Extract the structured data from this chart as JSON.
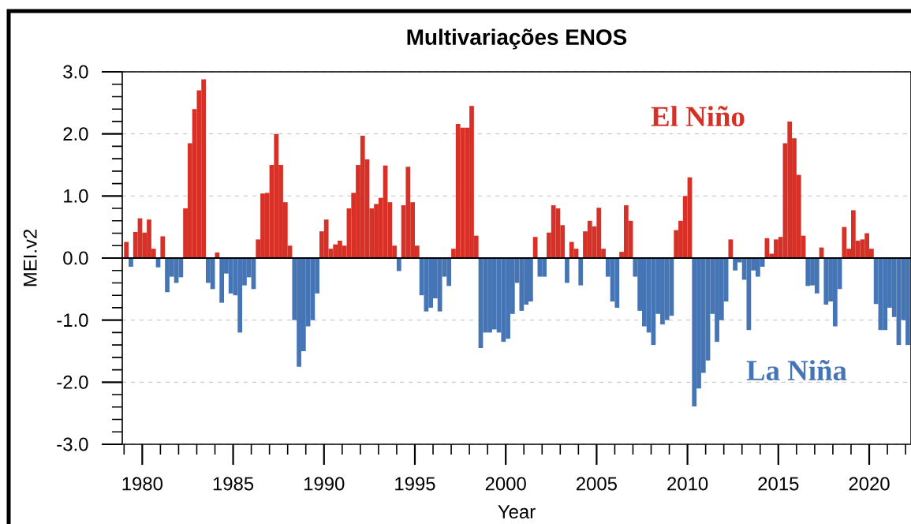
{
  "chart_data": {
    "type": "bar",
    "title": "Multivariações ENOS",
    "xlabel": "Year",
    "ylabel": "MEI.v2",
    "x": [
      1979.125,
      1979.375,
      1979.625,
      1979.875,
      1980.125,
      1980.375,
      1980.625,
      1980.875,
      1981.125,
      1981.375,
      1981.625,
      1981.875,
      1982.125,
      1982.375,
      1982.625,
      1982.875,
      1983.125,
      1983.375,
      1983.625,
      1983.875,
      1984.125,
      1984.375,
      1984.625,
      1984.875,
      1985.125,
      1985.375,
      1985.625,
      1985.875,
      1986.125,
      1986.375,
      1986.625,
      1986.875,
      1987.125,
      1987.375,
      1987.625,
      1987.875,
      1988.125,
      1988.375,
      1988.625,
      1988.875,
      1989.125,
      1989.375,
      1989.625,
      1989.875,
      1990.125,
      1990.375,
      1990.625,
      1990.875,
      1991.125,
      1991.375,
      1991.625,
      1991.875,
      1992.125,
      1992.375,
      1992.625,
      1992.875,
      1993.125,
      1993.375,
      1993.625,
      1993.875,
      1994.125,
      1994.375,
      1994.625,
      1994.875,
      1995.125,
      1995.375,
      1995.625,
      1995.875,
      1996.125,
      1996.375,
      1996.625,
      1996.875,
      1997.125,
      1997.375,
      1997.625,
      1997.875,
      1998.125,
      1998.375,
      1998.625,
      1998.875,
      1999.125,
      1999.375,
      1999.625,
      1999.875,
      2000.125,
      2000.375,
      2000.625,
      2000.875,
      2001.125,
      2001.375,
      2001.625,
      2001.875,
      2002.125,
      2002.375,
      2002.625,
      2002.875,
      2003.125,
      2003.375,
      2003.625,
      2003.875,
      2004.125,
      2004.375,
      2004.625,
      2004.875,
      2005.125,
      2005.375,
      2005.625,
      2005.875,
      2006.125,
      2006.375,
      2006.625,
      2006.875,
      2007.125,
      2007.375,
      2007.625,
      2007.875,
      2008.125,
      2008.375,
      2008.625,
      2008.875,
      2009.125,
      2009.375,
      2009.625,
      2009.875,
      2010.125,
      2010.375,
      2010.625,
      2010.875,
      2011.125,
      2011.375,
      2011.625,
      2011.875,
      2012.125,
      2012.375,
      2012.625,
      2012.875,
      2013.125,
      2013.375,
      2013.625,
      2013.875,
      2014.125,
      2014.375,
      2014.625,
      2014.875,
      2015.125,
      2015.375,
      2015.625,
      2015.875,
      2016.125,
      2016.375,
      2016.625,
      2016.875,
      2017.125,
      2017.375,
      2017.625,
      2017.875,
      2018.125,
      2018.375,
      2018.625,
      2018.875,
      2019.125,
      2019.375,
      2019.625,
      2019.875,
      2020.125,
      2020.375,
      2020.625,
      2020.875,
      2021.125,
      2021.375,
      2021.625,
      2021.875,
      2022.125
    ],
    "series": [
      {
        "name": "El Niño",
        "color": "#d63027",
        "values": [
          0.26,
          null,
          0.42,
          0.64,
          0.41,
          0.62,
          0.15,
          null,
          0.35,
          null,
          null,
          null,
          null,
          0.8,
          1.85,
          2.4,
          2.7,
          2.88,
          null,
          null,
          0.09,
          null,
          null,
          null,
          null,
          null,
          null,
          null,
          null,
          0.3,
          1.04,
          1.05,
          1.5,
          2.0,
          1.5,
          0.9,
          0.2,
          null,
          null,
          null,
          null,
          null,
          null,
          0.43,
          0.62,
          0.15,
          0.22,
          0.28,
          0.2,
          0.8,
          1.05,
          1.5,
          1.97,
          1.59,
          0.8,
          0.87,
          0.97,
          1.49,
          0.9,
          0.2,
          null,
          0.85,
          1.47,
          0.9,
          0.2,
          null,
          null,
          null,
          null,
          null,
          null,
          null,
          0.15,
          2.16,
          2.1,
          2.1,
          2.45,
          0.36,
          null,
          null,
          null,
          null,
          null,
          null,
          null,
          null,
          null,
          null,
          null,
          null,
          0.34,
          null,
          null,
          0.41,
          0.85,
          0.8,
          0.53,
          null,
          0.26,
          0.15,
          null,
          0.43,
          0.6,
          0.51,
          0.81,
          0.15,
          null,
          null,
          null,
          0.1,
          0.85,
          0.6,
          null,
          null,
          null,
          null,
          null,
          null,
          null,
          null,
          null,
          0.45,
          0.6,
          1.0,
          1.3,
          null,
          null,
          null,
          null,
          null,
          null,
          null,
          null,
          0.3,
          null,
          null,
          null,
          null,
          null,
          null,
          null,
          0.32,
          0.07,
          0.3,
          0.34,
          1.85,
          2.2,
          1.93,
          1.34,
          0.36,
          null,
          null,
          null,
          0.17,
          null,
          null,
          null,
          null,
          0.5,
          0.15,
          0.77,
          0.28,
          0.3,
          0.4,
          0.15,
          null,
          null,
          null,
          null,
          null,
          null,
          null,
          null
        ]
      },
      {
        "name": "La Niña",
        "color": "#4575b4",
        "values": [
          null,
          -0.14,
          null,
          null,
          null,
          null,
          null,
          -0.15,
          null,
          -0.55,
          -0.3,
          -0.4,
          -0.31,
          null,
          null,
          null,
          null,
          null,
          -0.4,
          -0.5,
          null,
          -0.72,
          -0.25,
          -0.57,
          -0.6,
          -1.2,
          -0.44,
          -0.31,
          -0.5,
          null,
          null,
          null,
          null,
          null,
          null,
          null,
          null,
          -1.0,
          -1.75,
          -1.5,
          -1.1,
          -1.0,
          -0.57,
          null,
          null,
          null,
          null,
          null,
          null,
          null,
          null,
          null,
          null,
          null,
          null,
          null,
          null,
          null,
          null,
          null,
          -0.21,
          null,
          null,
          null,
          null,
          -0.6,
          -0.86,
          -0.8,
          -0.65,
          -0.86,
          -0.3,
          -0.45,
          null,
          null,
          null,
          null,
          null,
          null,
          -1.45,
          -1.2,
          -1.2,
          -1.15,
          -1.2,
          -1.35,
          -1.3,
          -0.9,
          -0.4,
          -0.85,
          -0.75,
          -0.7,
          null,
          -0.3,
          -0.3,
          null,
          null,
          null,
          null,
          -0.4,
          null,
          null,
          -0.44,
          null,
          null,
          null,
          null,
          null,
          -0.3,
          -0.7,
          -0.8,
          null,
          null,
          null,
          -0.3,
          -0.85,
          -1.1,
          -1.2,
          -1.4,
          -0.9,
          -1.07,
          -1.0,
          -0.93,
          null,
          null,
          null,
          null,
          -2.39,
          -2.1,
          -1.85,
          -1.65,
          -0.9,
          -1.35,
          -1.0,
          -0.7,
          null,
          -0.2,
          -0.07,
          -0.35,
          -1.16,
          -0.2,
          -0.3,
          -0.14,
          null,
          null,
          null,
          null,
          null,
          null,
          null,
          null,
          null,
          -0.45,
          -0.44,
          -0.57,
          null,
          -0.75,
          -0.7,
          -1.1,
          -0.5,
          null,
          null,
          null,
          null,
          null,
          null,
          null,
          -0.74,
          -1.16,
          -1.16,
          -0.8,
          -0.95,
          -1.4,
          -1.0,
          -1.4
        ]
      }
    ],
    "xlim": [
      1978.9,
      2022.3
    ],
    "ylim": [
      -3,
      3
    ],
    "xticks": [
      {
        "value": 1979,
        "label": null
      },
      1980,
      {
        "value": 1981,
        "label": null
      },
      {
        "value": 1982,
        "label": null
      },
      {
        "value": 1983,
        "label": null
      },
      {
        "value": 1984,
        "label": null
      },
      1985,
      {
        "value": 1986,
        "label": null
      },
      {
        "value": 1987,
        "label": null
      },
      {
        "value": 1988,
        "label": null
      },
      {
        "value": 1989,
        "label": null
      },
      1990,
      {
        "value": 1991,
        "label": null
      },
      {
        "value": 1992,
        "label": null
      },
      {
        "value": 1993,
        "label": null
      },
      {
        "value": 1994,
        "label": null
      },
      1995,
      {
        "value": 1996,
        "label": null
      },
      {
        "value": 1997,
        "label": null
      },
      {
        "value": 1998,
        "label": null
      },
      {
        "value": 1999,
        "label": null
      },
      2000,
      {
        "value": 2001,
        "label": null
      },
      {
        "value": 2002,
        "label": null
      },
      {
        "value": 2003,
        "label": null
      },
      {
        "value": 2004,
        "label": null
      },
      2005,
      {
        "value": 2006,
        "label": null
      },
      {
        "value": 2007,
        "label": null
      },
      {
        "value": 2008,
        "label": null
      },
      {
        "value": 2009,
        "label": null
      },
      2010,
      {
        "value": 2011,
        "label": null
      },
      {
        "value": 2012,
        "label": null
      },
      {
        "value": 2013,
        "label": null
      },
      {
        "value": 2014,
        "label": null
      },
      2015,
      {
        "value": 2016,
        "label": null
      },
      {
        "value": 2017,
        "label": null
      },
      {
        "value": 2018,
        "label": null
      },
      {
        "value": 2019,
        "label": null
      },
      2020,
      {
        "value": 2021,
        "label": null
      },
      {
        "value": 2022,
        "label": null
      }
    ],
    "yticks": [
      {
        "value": -3,
        "label": "-3.0"
      },
      {
        "value": -2.8,
        "label": null
      },
      {
        "value": -2.6,
        "label": null
      },
      {
        "value": -2.4,
        "label": null
      },
      {
        "value": -2.2,
        "label": null
      },
      {
        "value": -2,
        "label": "-2.0"
      },
      {
        "value": -1.8,
        "label": null
      },
      {
        "value": -1.6,
        "label": null
      },
      {
        "value": -1.4,
        "label": null
      },
      {
        "value": -1.2,
        "label": null
      },
      {
        "value": -1,
        "label": "-1.0"
      },
      {
        "value": -0.8,
        "label": null
      },
      {
        "value": -0.6,
        "label": null
      },
      {
        "value": -0.4,
        "label": null
      },
      {
        "value": -0.2,
        "label": null
      },
      {
        "value": 0,
        "label": "0.0"
      },
      {
        "value": 0.2,
        "label": null
      },
      {
        "value": 0.4,
        "label": null
      },
      {
        "value": 0.6,
        "label": null
      },
      {
        "value": 0.8,
        "label": null
      },
      {
        "value": 1,
        "label": "1.0"
      },
      {
        "value": 1.2,
        "label": null
      },
      {
        "value": 1.4,
        "label": null
      },
      {
        "value": 1.6,
        "label": null
      },
      {
        "value": 1.8,
        "label": null
      },
      {
        "value": 2,
        "label": "2.0"
      },
      {
        "value": 2.2,
        "label": null
      },
      {
        "value": 2.4,
        "label": null
      },
      {
        "value": 2.6,
        "label": null
      },
      {
        "value": 2.8,
        "label": null
      },
      {
        "value": 3,
        "label": "3.0"
      }
    ],
    "grid": "y",
    "ref_lines": [
      {
        "axis": "y",
        "value": 0,
        "color": "#000000",
        "line_style": "solid"
      }
    ]
  }
}
